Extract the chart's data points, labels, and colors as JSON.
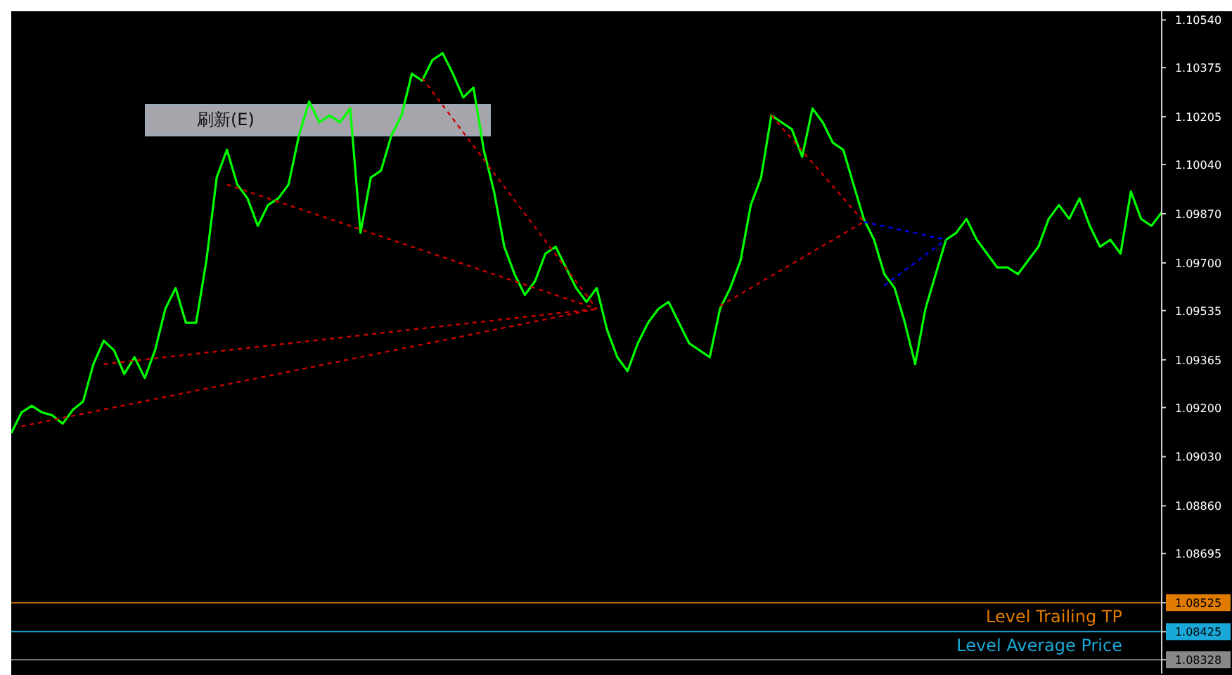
{
  "chart_data": {
    "type": "line",
    "marker": "none",
    "line_style": "solid",
    "tick_labels": "y",
    "categories": [
      null,
      null,
      null,
      null,
      null,
      null,
      null,
      null,
      null,
      null,
      null,
      null,
      null,
      null,
      null,
      null,
      null,
      null,
      null,
      null,
      null,
      null,
      null,
      null,
      null,
      null,
      null,
      null,
      null,
      null,
      null,
      null,
      null,
      null,
      null,
      null,
      null,
      null,
      null,
      null,
      null,
      null,
      null,
      null,
      null,
      null,
      null,
      null,
      null,
      null,
      null,
      null,
      null,
      null,
      null,
      null,
      null,
      null,
      null,
      null,
      null,
      null,
      null,
      null,
      null,
      null,
      null,
      null,
      null,
      null,
      null,
      null,
      null,
      null,
      null,
      null,
      null,
      null,
      null,
      null,
      null,
      null,
      null,
      null,
      null,
      null,
      null,
      null,
      null,
      null,
      null,
      null,
      null,
      null,
      null,
      null,
      null,
      null,
      null,
      null,
      null,
      null,
      null,
      null,
      null,
      null,
      null,
      null,
      null,
      null,
      null,
      null,
      null
    ],
    "series": [
      {
        "color": "#00ff00",
        "values": [
          1.09111,
          1.09183,
          1.09206,
          1.09183,
          1.09173,
          1.09144,
          1.09192,
          1.09221,
          1.0935,
          1.09431,
          1.09398,
          1.09316,
          1.09374,
          1.09302,
          1.09398,
          1.09541,
          1.09613,
          1.09493,
          1.09493,
          1.09708,
          1.09995,
          1.10091,
          1.09971,
          1.09923,
          1.09828,
          1.099,
          1.09923,
          1.09971,
          1.10139,
          1.10258,
          1.10186,
          1.1021,
          1.10186,
          1.10234,
          1.09804,
          1.09995,
          1.10019,
          1.10139,
          1.1021,
          1.10354,
          1.1033,
          1.10401,
          1.10425,
          1.10354,
          1.10272,
          1.10306,
          1.10091,
          1.09947,
          1.09756,
          1.09661,
          1.09589,
          1.09637,
          1.09732,
          1.09756,
          1.09684,
          1.09613,
          1.09565,
          1.09613,
          1.09469,
          1.09374,
          1.09326,
          1.09422,
          1.09493,
          1.09541,
          1.09565,
          1.09493,
          1.09422,
          1.09398,
          1.09374,
          1.09541,
          1.09613,
          1.09708,
          1.099,
          1.09995,
          1.1021,
          1.10186,
          1.10162,
          1.10067,
          1.10234,
          1.10186,
          1.10115,
          1.10091,
          1.09971,
          1.09852,
          1.0978,
          1.09661,
          1.09613,
          1.09493,
          1.0935,
          1.09541,
          1.09661,
          1.0978,
          1.09804,
          1.09852,
          1.0978,
          1.09732,
          1.09684,
          1.09684,
          1.09661,
          1.09708,
          1.09756,
          1.09852,
          1.099,
          1.09852,
          1.09923,
          1.09828,
          1.09756,
          1.0978,
          1.09732,
          1.09947,
          1.09852,
          1.09828,
          1.09875
        ]
      },
      {
        "type": "line",
        "color": "#cc0000",
        "line_style": "dashed",
        "values": [
          null,
          1.09135,
          null,
          null,
          null,
          null,
          null,
          null,
          null,
          null,
          null,
          null,
          null,
          null,
          null,
          null,
          null,
          null,
          null,
          null,
          null,
          null,
          null,
          null,
          null,
          null,
          null,
          null,
          null,
          null,
          null,
          null,
          null,
          null,
          null,
          null,
          null,
          null,
          null,
          null,
          null,
          null,
          null,
          null,
          null,
          null,
          null,
          null,
          null,
          null,
          null,
          null,
          null,
          null,
          null,
          null,
          null,
          1.09541,
          null,
          null,
          null,
          null,
          null,
          null,
          null,
          null,
          null,
          null,
          null,
          null,
          null,
          null,
          null,
          null,
          null,
          null,
          null,
          null,
          null,
          null,
          null,
          null,
          null,
          null,
          null,
          null,
          null,
          null,
          null,
          null,
          null,
          null,
          null,
          null,
          null,
          null,
          null,
          null,
          null,
          null,
          null,
          null,
          null,
          null,
          null,
          null,
          null,
          null,
          null,
          null,
          null,
          null,
          null
        ]
      },
      {
        "type": "line",
        "color": "#cc0000",
        "line_style": "dashed",
        "values": [
          null,
          null,
          null,
          null,
          null,
          null,
          null,
          null,
          null,
          null,
          null,
          null,
          null,
          null,
          null,
          null,
          null,
          null,
          null,
          null,
          null,
          1.09971,
          null,
          null,
          null,
          null,
          null,
          null,
          null,
          null,
          null,
          null,
          null,
          null,
          null,
          null,
          null,
          null,
          null,
          null,
          null,
          null,
          null,
          null,
          null,
          null,
          null,
          null,
          null,
          null,
          null,
          null,
          null,
          null,
          null,
          null,
          null,
          1.09541,
          null,
          null,
          null,
          null,
          null,
          null,
          null,
          null,
          null,
          null,
          null,
          null,
          null,
          null,
          null,
          null,
          null,
          null,
          null,
          null,
          null,
          null,
          null,
          null,
          null,
          null,
          null,
          null,
          null,
          null,
          null,
          null,
          null,
          null,
          null,
          null,
          null,
          null,
          null,
          null,
          null,
          null,
          null,
          null,
          null,
          null,
          null,
          null,
          null,
          null,
          null,
          null,
          null,
          null,
          null
        ]
      },
      {
        "type": "line",
        "color": "#cc0000",
        "line_style": "dashed",
        "values": [
          null,
          null,
          null,
          null,
          null,
          null,
          null,
          null,
          null,
          null,
          null,
          null,
          null,
          null,
          null,
          null,
          null,
          null,
          null,
          null,
          null,
          null,
          null,
          null,
          null,
          null,
          null,
          null,
          null,
          null,
          null,
          null,
          null,
          null,
          null,
          null,
          null,
          null,
          null,
          null,
          1.10339,
          null,
          null,
          null,
          null,
          null,
          null,
          null,
          null,
          null,
          null,
          null,
          null,
          null,
          null,
          null,
          null,
          1.09541,
          null,
          null,
          null,
          null,
          null,
          null,
          null,
          null,
          null,
          null,
          null,
          null,
          null,
          null,
          null,
          null,
          null,
          null,
          null,
          null,
          null,
          null,
          null,
          null,
          null,
          null,
          null,
          null,
          null,
          null,
          null,
          null,
          null,
          null,
          null,
          null,
          null,
          null,
          null,
          null,
          null,
          null,
          null,
          null,
          null,
          null,
          null,
          null,
          null,
          null,
          null,
          null,
          null,
          null,
          null
        ]
      },
      {
        "type": "line",
        "color": "#cc0000",
        "line_style": "dashed",
        "values": [
          null,
          null,
          null,
          null,
          null,
          null,
          null,
          null,
          null,
          1.0935,
          null,
          null,
          null,
          null,
          null,
          null,
          null,
          null,
          null,
          null,
          null,
          null,
          null,
          null,
          null,
          null,
          null,
          null,
          null,
          null,
          null,
          null,
          null,
          null,
          null,
          null,
          null,
          null,
          null,
          null,
          null,
          null,
          null,
          null,
          null,
          null,
          null,
          null,
          null,
          null,
          null,
          null,
          null,
          null,
          null,
          null,
          null,
          1.09541,
          null,
          null,
          null,
          null,
          null,
          null,
          null,
          null,
          null,
          null,
          null,
          null,
          null,
          null,
          null,
          null,
          null,
          null,
          null,
          null,
          null,
          null,
          null,
          null,
          null,
          null,
          null,
          null,
          null,
          null,
          null,
          null,
          null,
          null,
          null,
          null,
          null,
          null,
          null,
          null,
          null,
          null,
          null,
          null,
          null,
          null,
          null,
          null,
          null,
          null,
          null,
          null,
          null,
          null,
          null
        ]
      },
      {
        "type": "line",
        "color": "#cc0000",
        "line_style": "dashed",
        "values": [
          null,
          null,
          null,
          null,
          null,
          null,
          null,
          null,
          null,
          null,
          null,
          null,
          null,
          null,
          null,
          null,
          null,
          null,
          null,
          null,
          null,
          null,
          null,
          null,
          null,
          null,
          null,
          null,
          null,
          null,
          null,
          null,
          null,
          null,
          null,
          null,
          null,
          null,
          null,
          null,
          null,
          null,
          null,
          null,
          null,
          null,
          null,
          null,
          null,
          null,
          null,
          null,
          null,
          null,
          null,
          null,
          null,
          null,
          null,
          null,
          null,
          null,
          null,
          null,
          null,
          null,
          null,
          null,
          null,
          1.09551,
          null,
          null,
          null,
          null,
          null,
          null,
          null,
          null,
          null,
          null,
          null,
          null,
          null,
          1.09842,
          null,
          null,
          null,
          null,
          null,
          null,
          null,
          null,
          null,
          null,
          null,
          null,
          null,
          null,
          null,
          null,
          null,
          null,
          null,
          null,
          null,
          null,
          null,
          null,
          null,
          null,
          null,
          null,
          null
        ]
      },
      {
        "type": "line",
        "color": "#cc0000",
        "line_style": "dashed",
        "values": [
          null,
          null,
          null,
          null,
          null,
          null,
          null,
          null,
          null,
          null,
          null,
          null,
          null,
          null,
          null,
          null,
          null,
          null,
          null,
          null,
          null,
          null,
          null,
          null,
          null,
          null,
          null,
          null,
          null,
          null,
          null,
          null,
          null,
          null,
          null,
          null,
          null,
          null,
          null,
          null,
          null,
          null,
          null,
          null,
          null,
          null,
          null,
          null,
          null,
          null,
          null,
          null,
          null,
          null,
          null,
          null,
          null,
          null,
          null,
          null,
          null,
          null,
          null,
          null,
          null,
          null,
          null,
          null,
          null,
          null,
          null,
          null,
          null,
          null,
          1.1021,
          null,
          null,
          null,
          null,
          null,
          null,
          null,
          null,
          1.09842,
          null,
          null,
          null,
          null,
          null,
          null,
          null,
          null,
          null,
          null,
          null,
          null,
          null,
          null,
          null,
          null,
          null,
          null,
          null,
          null,
          null,
          null,
          null,
          null,
          null,
          null,
          null,
          null,
          null
        ]
      },
      {
        "type": "line",
        "color": "#0000ee",
        "line_style": "dashed",
        "values": [
          null,
          null,
          null,
          null,
          null,
          null,
          null,
          null,
          null,
          null,
          null,
          null,
          null,
          null,
          null,
          null,
          null,
          null,
          null,
          null,
          null,
          null,
          null,
          null,
          null,
          null,
          null,
          null,
          null,
          null,
          null,
          null,
          null,
          null,
          null,
          null,
          null,
          null,
          null,
          null,
          null,
          null,
          null,
          null,
          null,
          null,
          null,
          null,
          null,
          null,
          null,
          null,
          null,
          null,
          null,
          null,
          null,
          null,
          null,
          null,
          null,
          null,
          null,
          null,
          null,
          null,
          null,
          null,
          null,
          null,
          null,
          null,
          null,
          null,
          null,
          null,
          null,
          null,
          null,
          null,
          null,
          null,
          null,
          1.09842,
          null,
          null,
          null,
          null,
          null,
          null,
          null,
          1.0978,
          null,
          null,
          null,
          null,
          null,
          null,
          null,
          null,
          null,
          null,
          null,
          null,
          null,
          null,
          null,
          null,
          null,
          null,
          null,
          null,
          null
        ]
      },
      {
        "type": "line",
        "color": "#0000ee",
        "line_style": "dashed",
        "values": [
          null,
          null,
          null,
          null,
          null,
          null,
          null,
          null,
          null,
          null,
          null,
          null,
          null,
          null,
          null,
          null,
          null,
          null,
          null,
          null,
          null,
          null,
          null,
          null,
          null,
          null,
          null,
          null,
          null,
          null,
          null,
          null,
          null,
          null,
          null,
          null,
          null,
          null,
          null,
          null,
          null,
          null,
          null,
          null,
          null,
          null,
          null,
          null,
          null,
          null,
          null,
          null,
          null,
          null,
          null,
          null,
          null,
          null,
          null,
          null,
          null,
          null,
          null,
          null,
          null,
          null,
          null,
          null,
          null,
          null,
          null,
          null,
          null,
          null,
          null,
          null,
          null,
          null,
          null,
          null,
          null,
          null,
          null,
          null,
          null,
          1.09622,
          null,
          null,
          null,
          null,
          null,
          1.0978,
          null,
          null,
          null,
          null,
          null,
          null,
          null,
          null,
          null,
          null,
          null,
          null,
          null,
          null,
          null,
          null,
          null,
          null,
          null,
          null,
          null
        ]
      }
    ],
    "ylim": [
      1.0828,
      1.1057
    ],
    "yticks": [
      {
        "value": 1.1054,
        "label": "1.10540"
      },
      1.10375,
      1.10205,
      {
        "value": 1.1004,
        "label": "1.10040"
      },
      {
        "value": 1.0987,
        "label": "1.09870"
      },
      {
        "value": 1.097,
        "label": "1.09700"
      },
      1.09535,
      1.09365,
      {
        "value": 1.092,
        "label": "1.09200"
      },
      {
        "value": 1.0903,
        "label": "1.09030"
      },
      {
        "value": 1.0886,
        "label": "1.08860"
      },
      1.08695,
      1.08525,
      1.08425,
      1.08328
    ],
    "ref_lines": [
      {
        "axis": "y",
        "value": 1.08525,
        "label": "Level Trailing TP",
        "color": "#e07b00"
      },
      {
        "axis": "y",
        "value": 1.08425,
        "label": "Level Average Price",
        "color": "#1aa8d8"
      },
      {
        "axis": "y",
        "value": 1.08328,
        "label": null,
        "color": "#888888"
      }
    ],
    "annotations": [
      "刷新(E)"
    ]
  }
}
